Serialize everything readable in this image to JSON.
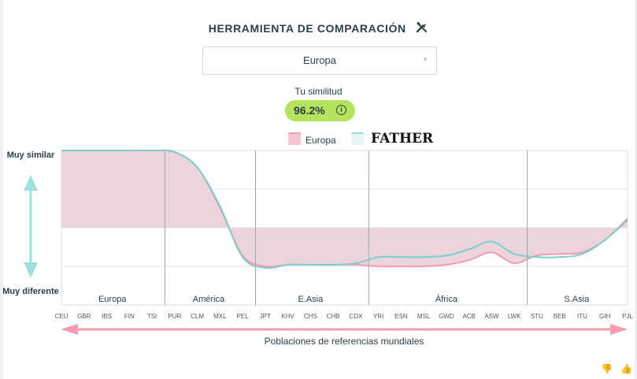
{
  "header": {
    "title": "HERRAMIENTA DE COMPARACIÓN",
    "tool_icon": "tools-icon"
  },
  "region_select": {
    "value": "Europa"
  },
  "similarity": {
    "label": "Tu similitud",
    "value": "96.2%",
    "info_icon": "info-icon"
  },
  "chart_data": {
    "type": "area",
    "title": "",
    "y_top_label": "Muy similar",
    "y_bottom_label": "Muy diferente",
    "xlabel": "Poblaciones de referencias mundiales",
    "ylim": [
      0,
      100
    ],
    "baseline": 50,
    "categories": [
      "CEU",
      "GBR",
      "IBS",
      "FIN",
      "TSI",
      "PUR",
      "CLM",
      "MXL",
      "PEL",
      "JPT",
      "KHV",
      "CHS",
      "CHB",
      "CDX",
      "YRI",
      "ESN",
      "MSL",
      "GWD",
      "ACB",
      "ASW",
      "LWK",
      "STU",
      "BEB",
      "ITU",
      "GIH",
      "PJL"
    ],
    "groups": [
      {
        "name": "Europa",
        "from": 0,
        "to": 4
      },
      {
        "name": "América",
        "from": 5,
        "to": 8
      },
      {
        "name": "E.Asia",
        "from": 9,
        "to": 13
      },
      {
        "name": "África",
        "from": 14,
        "to": 20
      },
      {
        "name": "S.Asia",
        "from": 21,
        "to": 25
      }
    ],
    "series": [
      {
        "name": "Europa",
        "color": "#f49bb0",
        "fill": "#e9cfd7",
        "values": [
          100,
          100,
          100,
          100,
          100,
          99,
          89,
          63,
          32,
          25,
          26,
          26,
          26,
          26,
          25,
          25,
          25,
          26,
          29,
          34,
          27,
          32,
          33,
          34,
          42,
          56
        ]
      },
      {
        "name": "FATHER",
        "color": "#7fcdc9",
        "values": [
          100,
          100,
          100,
          100,
          100,
          99,
          89,
          64,
          31,
          24,
          26,
          26,
          26,
          27,
          31,
          31,
          31,
          32,
          36,
          41,
          33,
          31,
          31,
          33,
          42,
          55
        ]
      }
    ],
    "grid": true
  },
  "legend": {
    "items": [
      "Europa",
      "FATHER"
    ]
  },
  "footer_icons": [
    "thumbs-down-icon",
    "thumbs-up-icon"
  ]
}
